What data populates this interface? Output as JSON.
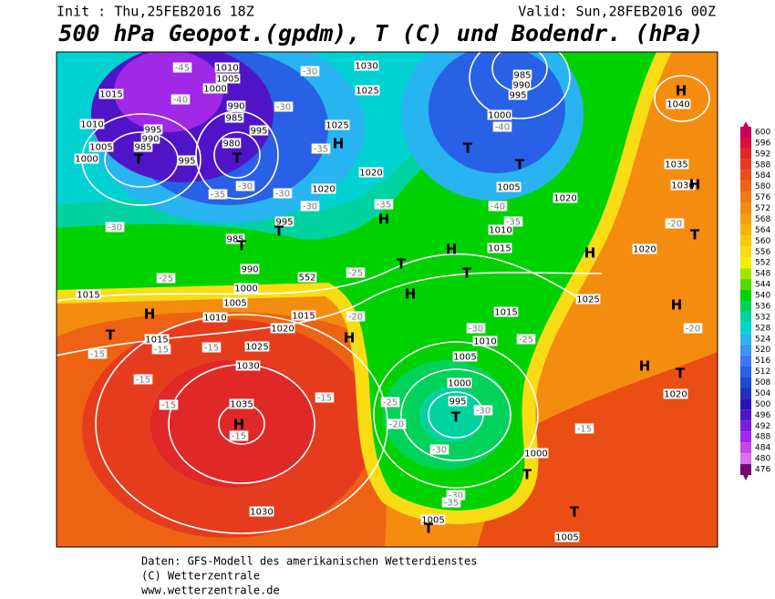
{
  "header": {
    "init": "Init : Thu,25FEB2016 18Z",
    "valid": "Valid: Sun,28FEB2016 00Z",
    "title": "500 hPa Geopot.(gpdm), T (C) und Bodendr. (hPa)"
  },
  "colorbar": {
    "levels": [
      600,
      596,
      592,
      588,
      584,
      580,
      576,
      572,
      568,
      564,
      560,
      556,
      552,
      548,
      544,
      540,
      536,
      532,
      528,
      524,
      520,
      516,
      512,
      508,
      504,
      500,
      496,
      492,
      488,
      484,
      480,
      476
    ],
    "colors": [
      "#c8005a",
      "#d8103c",
      "#e02828",
      "#e63c1e",
      "#ea4e14",
      "#ee6214",
      "#f27814",
      "#f48c10",
      "#f6a00c",
      "#f8b408",
      "#fac808",
      "#fadc14",
      "#f0f000",
      "#a0e600",
      "#50dc00",
      "#00d200",
      "#00d25a",
      "#00d2a0",
      "#00d2d2",
      "#28b4f0",
      "#3c96f0",
      "#3c78f0",
      "#2860e6",
      "#1e4ad2",
      "#1e32be",
      "#2814b4",
      "#5014c8",
      "#781edc",
      "#a028e6",
      "#c846e6",
      "#dc6ef0",
      "#6e0a6e"
    ]
  },
  "map_labels": [
    "1010",
    "1005",
    "1000",
    "1015",
    "1010",
    "1005",
    "1000",
    "995",
    "990",
    "985",
    "995",
    "990",
    "985",
    "980",
    "995",
    "1030",
    "1025",
    "1025",
    "1020",
    "1020",
    "995",
    "985",
    "990",
    "1000",
    "1005",
    "1010",
    "1015",
    "1015",
    "1020",
    "1025",
    "1030",
    "1035",
    "1030",
    "1015",
    "985",
    "990",
    "995",
    "1000",
    "1005",
    "1010",
    "1015",
    "1020",
    "1035",
    "1030",
    "1040",
    "1020",
    "1025",
    "1015",
    "1010",
    "1005",
    "1000",
    "995",
    "1000",
    "1005",
    "1005",
    "1020",
    "-45",
    "-40",
    "-35",
    "-30",
    "-30",
    "-35",
    "-30",
    "-30",
    "-30",
    "-35",
    "-25",
    "-20",
    "-25",
    "-30",
    "-15",
    "-15",
    "-15",
    "-15",
    "-15",
    "-15",
    "-15",
    "-40",
    "-40",
    "-35",
    "-30",
    "-25",
    "-30",
    "-25",
    "-20",
    "-30",
    "-30",
    "-35",
    "-15",
    "-20",
    "-20",
    "552",
    "T",
    "T",
    "T",
    "T",
    "H",
    "H",
    "T",
    "H",
    "T",
    "H",
    "H",
    "H",
    "T",
    "H",
    "T",
    "T",
    "T",
    "H",
    "H",
    "H",
    "T",
    "H",
    "H",
    "T",
    "T",
    "T",
    "T"
  ],
  "footer": [
    "Daten: GFS-Modell des amerikanischen Wetterdienstes",
    "(C) Wetterzentrale",
    "www.wetterzentrale.de"
  ]
}
